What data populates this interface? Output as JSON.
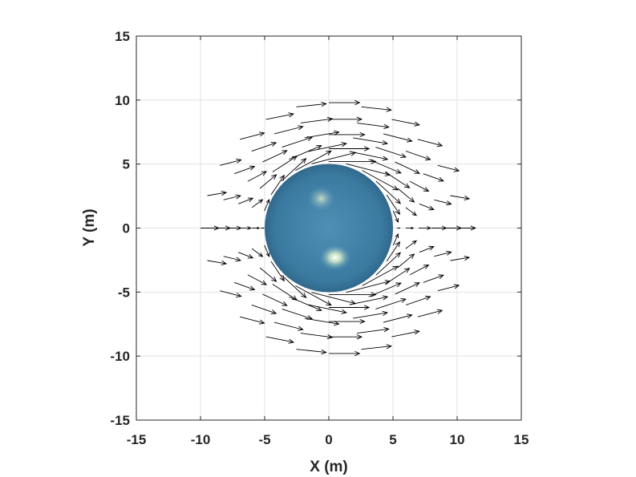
{
  "chart_data": {
    "type": "quiver",
    "xlabel": "X (m)",
    "ylabel": "Y (m)",
    "xlim": [
      -15,
      15
    ],
    "ylim": [
      -15,
      15
    ],
    "xticks": [
      -15,
      -10,
      -5,
      0,
      5,
      10,
      15
    ],
    "yticks": [
      -15,
      -10,
      -5,
      0,
      5,
      10,
      15
    ],
    "grid": true,
    "colors": {
      "arrow": "#000000",
      "sphere": "#3f7fa6",
      "grid": "#e3e3e3",
      "axis": "#262626"
    },
    "sphere": {
      "center": [
        0,
        0
      ],
      "radius": 5
    },
    "field": {
      "description_free": true,
      "uniform_velocity": 1,
      "vectors": []
    }
  }
}
